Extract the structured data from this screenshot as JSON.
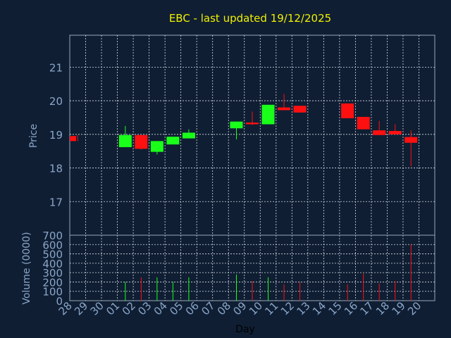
{
  "colors": {
    "background": "#0f1e33",
    "plot_border": "#9aa6b8",
    "grid": "#d8dce4",
    "title": "#f0f000",
    "axis_label": "#8aa6c8",
    "tick_label": "#8aa6c8",
    "xlabel": "#000000",
    "up": "#1aff1a",
    "down": "#ff1010"
  },
  "chart_data": [
    {
      "type": "candlestick",
      "title": "EBC - last updated 19/12/2025",
      "ylabel": "Price",
      "ylim": [
        16.0,
        21.95
      ],
      "yticks": [
        17,
        18,
        19,
        20,
        21
      ],
      "grid": true,
      "days": [
        "28",
        "29",
        "30",
        "01",
        "02",
        "03",
        "04",
        "05",
        "06",
        "07",
        "08",
        "09",
        "10",
        "11",
        "12",
        "13",
        "14",
        "15",
        "16",
        "17",
        "18",
        "19",
        "20"
      ],
      "candles": [
        {
          "day": "28",
          "open": 18.95,
          "close": 18.8,
          "high": 18.98,
          "low": 18.8
        },
        {
          "day": "01",
          "open": 18.62,
          "close": 18.98,
          "high": 19.25,
          "low": 18.62
        },
        {
          "day": "02",
          "open": 18.98,
          "close": 18.57,
          "high": 18.98,
          "low": 18.55
        },
        {
          "day": "03",
          "open": 18.48,
          "close": 18.8,
          "high": 18.8,
          "low": 18.4
        },
        {
          "day": "04",
          "open": 18.7,
          "close": 18.93,
          "high": 18.93,
          "low": 18.7
        },
        {
          "day": "05",
          "open": 18.88,
          "close": 19.05,
          "high": 19.15,
          "low": 18.88
        },
        {
          "day": "08",
          "open": 19.18,
          "close": 19.38,
          "high": 19.38,
          "low": 18.85
        },
        {
          "day": "09",
          "open": 19.35,
          "close": 19.3,
          "high": 19.68,
          "low": 19.28
        },
        {
          "day": "10",
          "open": 19.3,
          "close": 19.88,
          "high": 19.88,
          "low": 19.3
        },
        {
          "day": "11",
          "open": 19.8,
          "close": 19.72,
          "high": 20.2,
          "low": 19.72
        },
        {
          "day": "12",
          "open": 19.85,
          "close": 19.65,
          "high": 19.85,
          "low": 19.65
        },
        {
          "day": "15",
          "open": 19.92,
          "close": 19.48,
          "high": 19.92,
          "low": 19.48
        },
        {
          "day": "16",
          "open": 19.52,
          "close": 19.15,
          "high": 19.52,
          "low": 19.15
        },
        {
          "day": "17",
          "open": 19.12,
          "close": 18.98,
          "high": 19.4,
          "low": 18.98
        },
        {
          "day": "18",
          "open": 19.1,
          "close": 19.0,
          "high": 19.3,
          "low": 19.0
        },
        {
          "day": "19",
          "open": 18.92,
          "close": 18.75,
          "high": 19.12,
          "low": 18.05
        }
      ]
    },
    {
      "type": "bar",
      "ylabel": "Volume (0000)",
      "xlabel": "Day",
      "ylim": [
        0,
        700
      ],
      "yticks": [
        0,
        100,
        200,
        300,
        400,
        500,
        600,
        700
      ],
      "grid": true,
      "days": [
        "28",
        "29",
        "30",
        "01",
        "02",
        "03",
        "04",
        "05",
        "06",
        "07",
        "08",
        "09",
        "10",
        "11",
        "12",
        "13",
        "14",
        "15",
        "16",
        "17",
        "18",
        "19",
        "20"
      ],
      "volumes": [
        {
          "day": "01",
          "value": 200,
          "direction": "up"
        },
        {
          "day": "02",
          "value": 250,
          "direction": "down"
        },
        {
          "day": "03",
          "value": 250,
          "direction": "up"
        },
        {
          "day": "04",
          "value": 200,
          "direction": "up"
        },
        {
          "day": "05",
          "value": 250,
          "direction": "up"
        },
        {
          "day": "08",
          "value": 280,
          "direction": "up"
        },
        {
          "day": "09",
          "value": 210,
          "direction": "down"
        },
        {
          "day": "10",
          "value": 250,
          "direction": "up"
        },
        {
          "day": "11",
          "value": 175,
          "direction": "down"
        },
        {
          "day": "12",
          "value": 200,
          "direction": "down"
        },
        {
          "day": "15",
          "value": 175,
          "direction": "down"
        },
        {
          "day": "16",
          "value": 290,
          "direction": "down"
        },
        {
          "day": "17",
          "value": 185,
          "direction": "down"
        },
        {
          "day": "18",
          "value": 210,
          "direction": "down"
        },
        {
          "day": "19",
          "value": 600,
          "direction": "down"
        }
      ]
    }
  ]
}
